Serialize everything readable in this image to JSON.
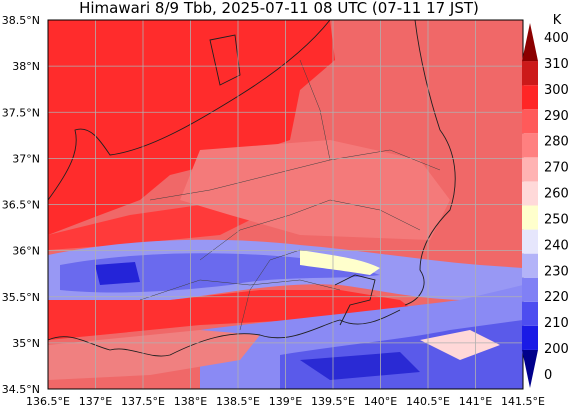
{
  "title": "Himawari 8/9 Tbb, 2025-07-11 08 UTC (07-11 17 JST)",
  "map": {
    "lon_range": [
      136.5,
      141.5
    ],
    "lat_range": [
      34.5,
      38.5
    ],
    "x_ticks": [
      "136.5°E",
      "137°E",
      "137.5°E",
      "138°E",
      "138.5°E",
      "139°E",
      "139.5°E",
      "140°E",
      "140.5°E",
      "141°E",
      "141.5°E"
    ],
    "y_ticks": [
      "34.5°N",
      "35°N",
      "35.5°N",
      "36°N",
      "36.5°N",
      "37°N",
      "37.5°N",
      "38°N",
      "38.5°N"
    ],
    "grid": true
  },
  "colorbar": {
    "unit": "K",
    "levels": [
      "0",
      "200",
      "210",
      "220",
      "230",
      "240",
      "250",
      "260",
      "270",
      "280",
      "290",
      "300",
      "310",
      "400"
    ],
    "colors": [
      "#00008b",
      "#1a1ae6",
      "#4d4df0",
      "#8080f5",
      "#b3b3f8",
      "#e6e6fc",
      "#ffffcc",
      "#ffd9d9",
      "#ffb3b3",
      "#ff8080",
      "#ff5a5a",
      "#ff2626",
      "#cc1a1a",
      "#8b0000"
    ]
  },
  "field_colors": {
    "warm": "#f06060",
    "hot": "#ff2a2a",
    "cold_band": "#7a7af0",
    "very_cold": "#2020d0",
    "pale": "#ffd0d0",
    "ocean_land_lines": "#202020"
  }
}
